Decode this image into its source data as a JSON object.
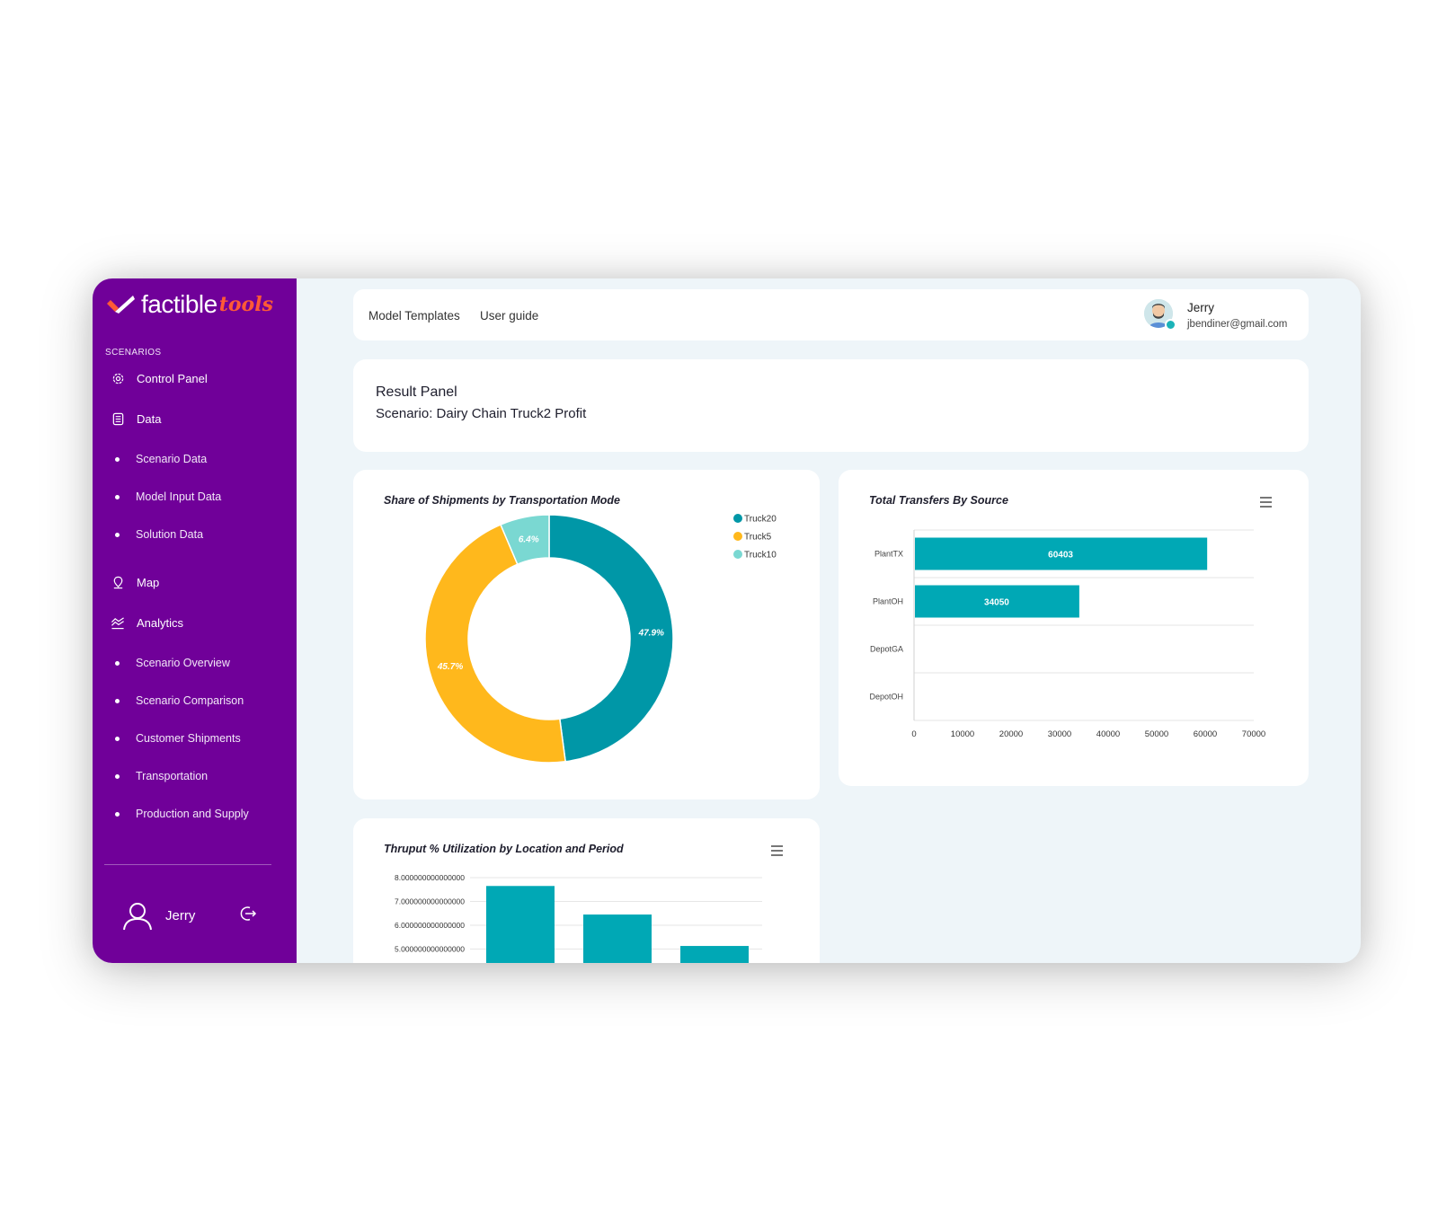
{
  "sidebar": {
    "logo_text": "factible",
    "logo_tools": "tools",
    "section_label": "SCENARIOS",
    "items": [
      {
        "label": "Control Panel"
      },
      {
        "label": "Data"
      },
      {
        "label": "Scenario Data"
      },
      {
        "label": "Model Input Data"
      },
      {
        "label": "Solution Data"
      },
      {
        "label": "Map"
      },
      {
        "label": "Analytics"
      },
      {
        "label": "Scenario Overview"
      },
      {
        "label": "Scenario Comparison"
      },
      {
        "label": "Customer Shipments"
      },
      {
        "label": "Transportation"
      },
      {
        "label": "Production and Supply"
      }
    ],
    "user_name": "Jerry"
  },
  "topbar": {
    "links": [
      "Model Templates",
      "User guide"
    ],
    "user_name": "Jerry",
    "user_email": "jbendiner@gmail.com"
  },
  "result_panel": {
    "title": "Result Panel",
    "scenario": "Scenario: Dairy Chain Truck2 Profit"
  },
  "colors": {
    "sidebar": "#700099",
    "teal": "#0097a7",
    "teal_bar": "#00a8b5",
    "yellow": "#ffb81c",
    "light_teal": "#7ad8d2",
    "brand_orange": "#ff5a36"
  },
  "chart_data": [
    {
      "type": "pie",
      "title": "Share of Shipments by Transportation Mode",
      "series": [
        {
          "name": "Truck20",
          "value": 47.9,
          "label": "47.9%",
          "color": "#0097a7"
        },
        {
          "name": "Truck5",
          "value": 45.7,
          "label": "45.7%",
          "color": "#ffb81c"
        },
        {
          "name": "Truck10",
          "value": 6.4,
          "label": "6.4%",
          "color": "#7ad8d2"
        }
      ],
      "legend": "top-right"
    },
    {
      "type": "bar",
      "orientation": "horizontal",
      "title": "Total Transfers By Source",
      "categories": [
        "PlantTX",
        "PlantOH",
        "DepotGA",
        "DepotOH"
      ],
      "values": [
        60403,
        34050,
        0,
        0
      ],
      "data_labels": [
        "60403",
        "34050",
        "",
        ""
      ],
      "xlim": [
        0,
        70000
      ],
      "xticks": [
        "0",
        "10000",
        "20000",
        "30000",
        "40000",
        "50000",
        "60000",
        "70000"
      ],
      "grid": true
    },
    {
      "type": "bar",
      "title": "Thruput % Utilization by Location and Period",
      "values": [
        7.65,
        6.45,
        5.13
      ],
      "ylim": [
        5,
        8
      ],
      "yticks": [
        "8.000000000000000",
        "7.000000000000000",
        "6.000000000000000",
        "5.000000000000000"
      ],
      "grid": true
    }
  ]
}
